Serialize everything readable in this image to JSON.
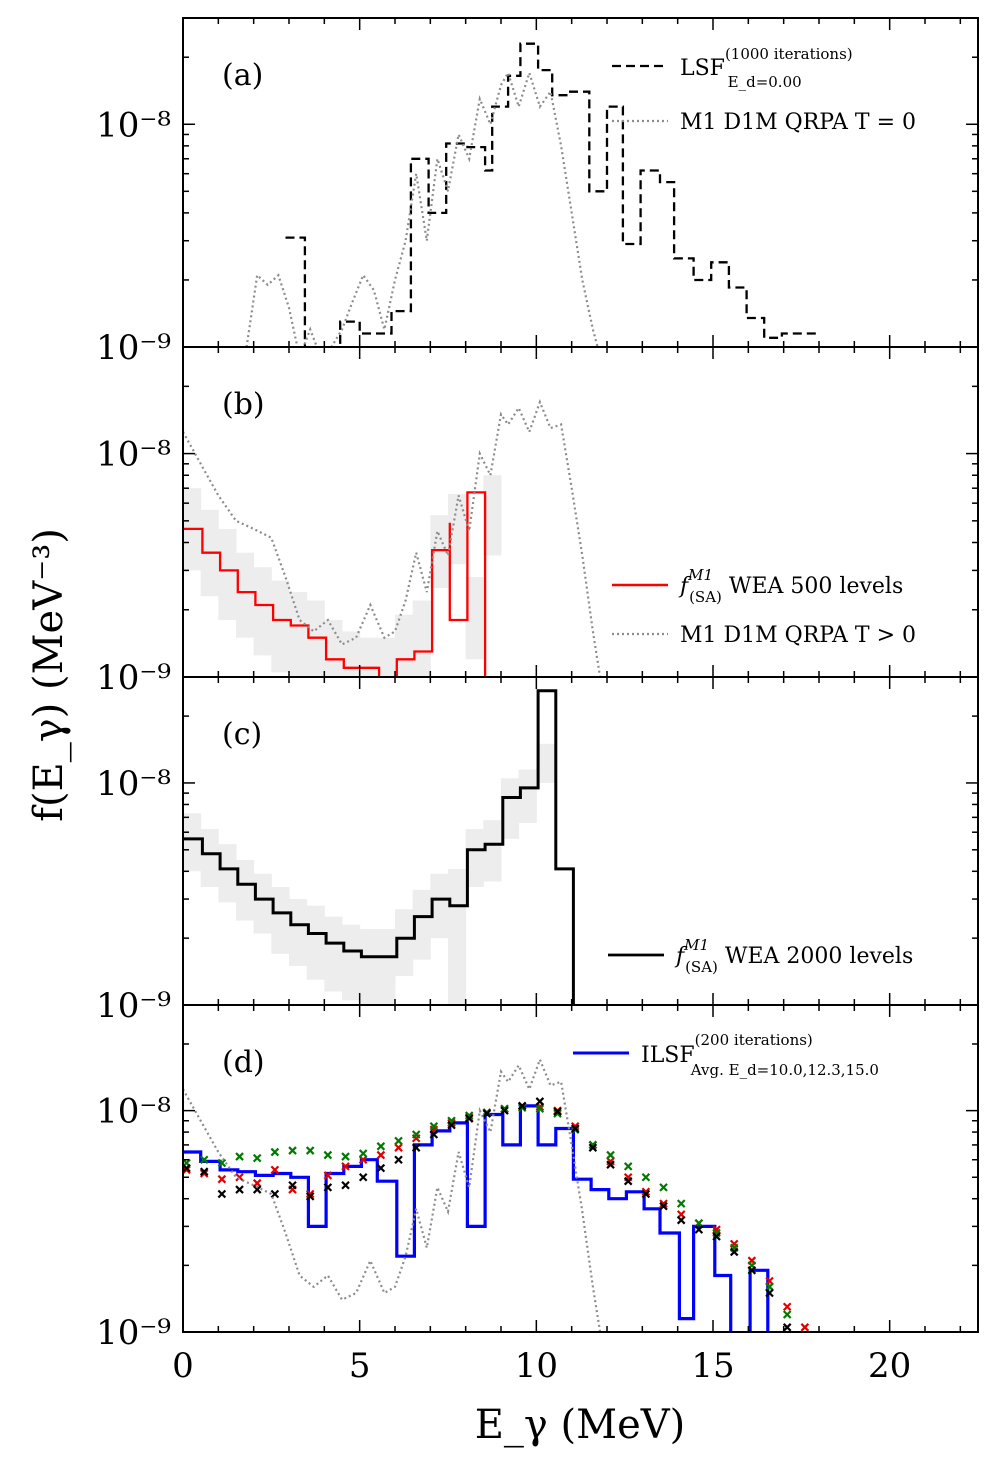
{
  "figure": {
    "xlabel": "E_γ (MeV)",
    "ylabel": "f(E_γ) (MeV⁻³)",
    "xlim": [
      0,
      22.5
    ],
    "ylim": [
      1e-09,
      3e-08
    ],
    "yscale": "log",
    "x_ticks": [
      "0",
      "5",
      "10",
      "15",
      "20"
    ],
    "y_ticks": [
      "10⁻⁸",
      "10⁻⁹"
    ]
  },
  "chart_data": [
    {
      "panel": "(a)",
      "type": "line",
      "series": [
        {
          "name": "LSF_{E_d=0.00}^{(1000 iterations)}",
          "style": "dashed",
          "color": "#000000",
          "x": [
            2.9,
            3.45,
            4.45,
            5.0,
            5.9,
            6.45,
            6.95,
            7.45,
            8.05,
            8.55,
            8.75,
            9.2,
            9.55,
            10.05,
            10.45,
            10.9,
            11.5,
            12.0,
            12.45,
            12.95,
            13.5,
            13.9,
            14.45,
            14.95,
            15.45,
            15.95,
            16.45,
            16.95,
            17.5
          ],
          "y": [
            3.1e-09,
            6e-10,
            1.3e-09,
            1.15e-09,
            1.45e-09,
            7e-09,
            4e-09,
            8.2e-09,
            7.9e-09,
            6.2e-09,
            1.2e-08,
            1.65e-08,
            2.3e-08,
            1.75e-08,
            1.35e-08,
            1.4e-08,
            5e-09,
            1.2e-08,
            2.9e-09,
            6.2e-09,
            5.5e-09,
            2.5e-09,
            2e-09,
            2.4e-09,
            1.85e-09,
            1.35e-09,
            1.1e-09,
            1.15e-09,
            1.15e-09
          ]
        },
        {
          "name": "M1 D1M QRPA T = 0",
          "style": "dotted",
          "color": "#8c8c8c",
          "ref": "qrpa_t0"
        }
      ]
    },
    {
      "panel": "(b)",
      "type": "line",
      "series": [
        {
          "name": "f_(SA)^M1 WEA 500 levels",
          "style": "solid",
          "color": "#ff0000",
          "x": [
            0,
            0.55,
            1.05,
            1.55,
            2.05,
            2.55,
            3.05,
            3.55,
            4.05,
            4.55,
            5.55,
            6.05,
            6.55,
            7.05,
            7.55,
            7.55,
            8.05,
            8.55,
            8.75
          ],
          "y": [
            4.6e-09,
            3.6e-09,
            3e-09,
            2.4e-09,
            2.1e-09,
            1.8e-09,
            1.7e-09,
            1.5e-09,
            1.2e-09,
            1.1e-09,
            9e-10,
            1.2e-09,
            1.3e-09,
            3.7e-09,
            4.9e-09,
            1.8e-09,
            6.7e-09,
            6e-10,
            6e-10
          ]
        },
        {
          "name": "M1 D1M QRPA T > 0",
          "style": "dotted",
          "color": "#8c8c8c",
          "ref": "qrpa_tgt0"
        }
      ]
    },
    {
      "panel": "(c)",
      "type": "line",
      "series": [
        {
          "name": "f_(SA)^M1 WEA 2000 levels",
          "style": "solid",
          "color": "#000000",
          "x": [
            0,
            0.55,
            1.05,
            1.55,
            2.05,
            2.55,
            3.05,
            3.55,
            4.05,
            4.55,
            5.05,
            5.55,
            6.05,
            6.55,
            7.05,
            7.55,
            8.05,
            8.55,
            9.05,
            9.55,
            10.05,
            10.55,
            11.05,
            11.3
          ],
          "y": [
            5.6e-09,
            4.8e-09,
            4.1e-09,
            3.5e-09,
            3e-09,
            2.6e-09,
            2.3e-09,
            2.1e-09,
            1.9e-09,
            1.75e-09,
            1.65e-09,
            1.65e-09,
            2e-09,
            2.5e-09,
            3e-09,
            2.8e-09,
            5e-09,
            5.3e-09,
            8.6e-09,
            9.5e-09,
            2.6e-08,
            4.1e-09,
            6e-10,
            6e-10
          ]
        }
      ]
    },
    {
      "panel": "(d)",
      "type": "line",
      "series": [
        {
          "name": "ILSF_{Avg. E_d=10.0,12.3,15.0}^{(200 iterations)}",
          "style": "solid",
          "color": "#0000ff",
          "x": [
            0,
            0.5,
            1.05,
            1.55,
            2.05,
            2.55,
            3.05,
            3.55,
            4.05,
            4.55,
            5.05,
            5.5,
            6.05,
            6.55,
            7.05,
            7.55,
            8.05,
            8.55,
            9.05,
            9.55,
            10.05,
            10.55,
            11.05,
            11.55,
            12.05,
            12.55,
            13.05,
            13.5,
            14.05,
            14.45,
            15.05,
            15.5,
            16.05,
            16.55,
            16.95
          ],
          "y": [
            6.5e-09,
            5.9e-09,
            5.4e-09,
            5.3e-09,
            5.1e-09,
            5.2e-09,
            5e-09,
            3e-09,
            5.2e-09,
            5.6e-09,
            6e-09,
            4.8e-09,
            2.2e-09,
            7e-09,
            8.1e-09,
            8.8e-09,
            3e-09,
            9.6e-09,
            7e-09,
            1.05e-08,
            7e-09,
            8.3e-09,
            4.9e-09,
            4.4e-09,
            4e-09,
            4.3e-09,
            3.6e-09,
            2.8e-09,
            1.15e-09,
            3e-09,
            1.8e-09,
            6e-10,
            1.9e-09,
            6e-10,
            6e-10
          ]
        },
        {
          "name": "markers_red",
          "style": "cross",
          "color": "#e00000",
          "x": [
            0.1,
            0.6,
            1.1,
            1.6,
            2.1,
            2.6,
            3.1,
            3.6,
            4.1,
            4.6,
            5.1,
            5.6,
            6.1,
            6.6,
            7.1,
            7.6,
            8.1,
            8.6,
            9.1,
            9.6,
            10.1,
            10.6,
            11.1,
            11.6,
            12.1,
            12.6,
            13.1,
            13.6,
            14.1,
            14.6,
            15.1,
            15.6,
            16.1,
            16.6,
            17.1,
            17.6
          ],
          "y": [
            5.4e-09,
            5.2e-09,
            4.9e-09,
            5e-09,
            4.7e-09,
            5.4e-09,
            4.4e-09,
            4.2e-09,
            5.1e-09,
            5.6e-09,
            6e-09,
            6.3e-09,
            6.8e-09,
            7.5e-09,
            8.2e-09,
            8.8e-09,
            9.3e-09,
            9.8e-09,
            1.02e-08,
            1.05e-08,
            1.04e-08,
            1e-08,
            8.5e-09,
            7e-09,
            5.9e-09,
            5e-09,
            4.3e-09,
            3.8e-09,
            3.4e-09,
            3.1e-09,
            2.9e-09,
            2.5e-09,
            2.1e-09,
            1.7e-09,
            1.3e-09,
            1.05e-09
          ]
        },
        {
          "name": "markers_green",
          "style": "cross",
          "color": "#007a00",
          "x": [
            0.1,
            0.6,
            1.1,
            1.6,
            2.1,
            2.6,
            3.1,
            3.6,
            4.1,
            4.6,
            5.1,
            5.6,
            6.1,
            6.6,
            7.1,
            7.6,
            8.1,
            8.6,
            9.1,
            9.6,
            10.1,
            10.6,
            11.1,
            11.6,
            12.1,
            12.6,
            13.1,
            13.6,
            14.1,
            14.6,
            15.1,
            15.6,
            16.1,
            16.6,
            17.1
          ],
          "y": [
            5.8e-09,
            6e-09,
            5.8e-09,
            6.2e-09,
            6.1e-09,
            6.5e-09,
            6.6e-09,
            6.6e-09,
            6.3e-09,
            6.2e-09,
            6.4e-09,
            6.9e-09,
            7.3e-09,
            7.8e-09,
            8.5e-09,
            9e-09,
            9.5e-09,
            9.8e-09,
            1.02e-08,
            1.03e-08,
            1.02e-08,
            9.7e-09,
            8.2e-09,
            7e-09,
            6.3e-09,
            5.6e-09,
            5e-09,
            4.5e-09,
            3.8e-09,
            3.1e-09,
            2.8e-09,
            2.4e-09,
            2e-09,
            1.6e-09,
            1.2e-09
          ]
        },
        {
          "name": "markers_black",
          "style": "cross",
          "color": "#000000",
          "x": [
            0.1,
            0.6,
            1.1,
            1.6,
            2.1,
            2.6,
            3.1,
            3.6,
            4.1,
            4.6,
            5.1,
            5.6,
            6.1,
            6.6,
            7.1,
            7.6,
            8.1,
            8.6,
            9.1,
            9.6,
            10.1,
            10.6,
            11.1,
            11.6,
            12.1,
            12.6,
            13.1,
            13.6,
            14.1,
            14.6,
            15.1,
            15.6,
            16.1,
            16.6,
            17.1
          ],
          "y": [
            5.5e-09,
            5.3e-09,
            4.2e-09,
            4.4e-09,
            4.4e-09,
            4.2e-09,
            4.6e-09,
            4.1e-09,
            4.5e-09,
            4.6e-09,
            5e-09,
            5.5e-09,
            6e-09,
            6.8e-09,
            7.8e-09,
            8.6e-09,
            9.2e-09,
            9.7e-09,
            1e-08,
            1.05e-08,
            1.1e-08,
            9.9e-09,
            8.3e-09,
            6.8e-09,
            5.7e-09,
            4.8e-09,
            4.2e-09,
            3.7e-09,
            3.2e-09,
            2.9e-09,
            2.7e-09,
            2.3e-09,
            1.9e-09,
            1.5e-09,
            1.05e-09
          ]
        },
        {
          "name": "qrpa_t_gt0_d",
          "style": "dotted",
          "color": "#8c8c8c",
          "ref": "qrpa_tgt0"
        }
      ]
    }
  ],
  "curves": {
    "qrpa_t0": {
      "x": [
        1.8,
        2.1,
        2.4,
        2.7,
        3.0,
        3.3,
        3.6,
        3.9,
        4.2,
        4.5,
        4.8,
        5.1,
        5.4,
        5.7,
        6.0,
        6.3,
        6.6,
        6.9,
        7.2,
        7.5,
        7.8,
        8.1,
        8.4,
        8.7,
        9.0,
        9.2,
        9.5,
        9.8,
        10.1,
        10.4,
        10.7,
        11.0,
        11.3,
        11.6,
        11.9
      ],
      "y": [
        1e-09,
        2.1e-09,
        1.9e-09,
        2.1e-09,
        1.5e-09,
        9e-10,
        1.2e-09,
        9e-10,
        1e-09,
        1.2e-09,
        1.6e-09,
        2.1e-09,
        1.8e-09,
        1.2e-09,
        2e-09,
        3e-09,
        6e-09,
        3e-09,
        7e-09,
        5e-09,
        9e-09,
        7e-09,
        1.3e-08,
        1e-08,
        1.5e-08,
        1.7e-08,
        1.2e-08,
        1.7e-08,
        1.2e-08,
        1.4e-08,
        8e-09,
        4e-09,
        2e-09,
        1.2e-09,
        8e-10
      ]
    },
    "qrpa_tgt0": {
      "x": [
        0.0,
        0.5,
        1.0,
        1.5,
        2.0,
        2.5,
        2.9,
        3.3,
        3.7,
        4.1,
        4.5,
        4.9,
        5.3,
        5.7,
        6.0,
        6.3,
        6.6,
        6.9,
        7.2,
        7.5,
        7.8,
        8.1,
        8.4,
        8.7,
        9.0,
        9.2,
        9.5,
        9.8,
        10.1,
        10.4,
        10.7,
        11.0,
        11.3,
        11.6,
        11.9
      ],
      "y": [
        1.25e-08,
        9e-09,
        6.5e-09,
        5e-09,
        4.6e-09,
        4.2e-09,
        2.8e-09,
        1.8e-09,
        1.6e-09,
        1.8e-09,
        1.4e-09,
        1.5e-09,
        2.1e-09,
        1.5e-09,
        1.6e-09,
        2.2e-09,
        3.6e-09,
        2.4e-09,
        4.5e-09,
        3.5e-09,
        6.5e-09,
        4.5e-09,
        1e-08,
        8e-09,
        1.5e-08,
        1.35e-08,
        1.6e-08,
        1.25e-08,
        1.7e-08,
        1.3e-08,
        1.35e-08,
        7e-09,
        3.5e-09,
        1.6e-09,
        8e-10
      ]
    }
  },
  "bands": {
    "b": {
      "x": [
        0,
        0.5,
        1.0,
        1.5,
        2.0,
        2.5,
        3.0,
        3.5,
        4.0,
        4.5,
        5.0,
        5.5,
        6.0,
        6.5,
        7.0,
        7.5,
        8.0,
        8.5
      ],
      "lo": [
        3e-09,
        2.3e-09,
        1.8e-09,
        1.5e-09,
        1.25e-09,
        1.05e-09,
        9.5e-10,
        9e-10,
        8e-10,
        7e-10,
        6e-10,
        6e-10,
        8e-10,
        1e-09,
        2.5e-09,
        3.2e-09,
        1.2e-09,
        3.5e-09
      ],
      "hi": [
        7e-09,
        5.6e-09,
        4.6e-09,
        3.6e-09,
        3.1e-09,
        2.7e-09,
        2.4e-09,
        2.2e-09,
        1.8e-09,
        1.6e-09,
        1.5e-09,
        1.5e-09,
        1.9e-09,
        2.2e-09,
        5.3e-09,
        6.6e-09,
        2.8e-09,
        8e-09
      ]
    },
    "c": {
      "x": [
        0,
        0.5,
        1.0,
        1.5,
        2.0,
        2.5,
        3.0,
        3.5,
        4.0,
        4.5,
        5.0,
        5.5,
        6.0,
        6.5,
        7.0,
        7.5,
        8.0,
        8.5,
        9.0,
        9.5,
        10.0
      ],
      "lo": [
        4e-09,
        3.4e-09,
        2.9e-09,
        2.4e-09,
        2.1e-09,
        1.7e-09,
        1.5e-09,
        1.3e-09,
        1.15e-09,
        1.05e-09,
        1e-09,
        1e-09,
        1.35e-09,
        1.6e-09,
        2e-09,
        8e-10,
        3.4e-09,
        3.6e-09,
        5.6e-09,
        6.6e-09,
        1e-08
      ],
      "hi": [
        7.3e-09,
        6.2e-09,
        5.3e-09,
        4.5e-09,
        3.9e-09,
        3.4e-09,
        3e-09,
        2.8e-09,
        2.5e-09,
        2.3e-09,
        2.2e-09,
        2.2e-09,
        2.7e-09,
        3.3e-09,
        3.9e-09,
        4.1e-09,
        6.2e-09,
        6.8e-09,
        1.05e-08,
        1.15e-08,
        1.5e-08
      ]
    }
  },
  "legend": {
    "a1_main": "LSF",
    "a1_sup": "(1000 iterations)",
    "a1_sub": "E_d=0.00",
    "a2": "M1 D1M QRPA T = 0",
    "b1_main": "f",
    "b1_sup": "M1",
    "b1_sub": "(SA)",
    "b1_rest": " WEA 500 levels",
    "b2": "M1 D1M QRPA T > 0",
    "c1_main": "f",
    "c1_sup": "M1",
    "c1_sub": "(SA)",
    "c1_rest": " WEA 2000 levels",
    "d1_main": "ILSF",
    "d1_sup": "(200 iterations)",
    "d1_sub": "Avg. E_d=10.0,12.3,15.0"
  },
  "panel_labels": [
    "(a)",
    "(b)",
    "(c)",
    "(d)"
  ]
}
